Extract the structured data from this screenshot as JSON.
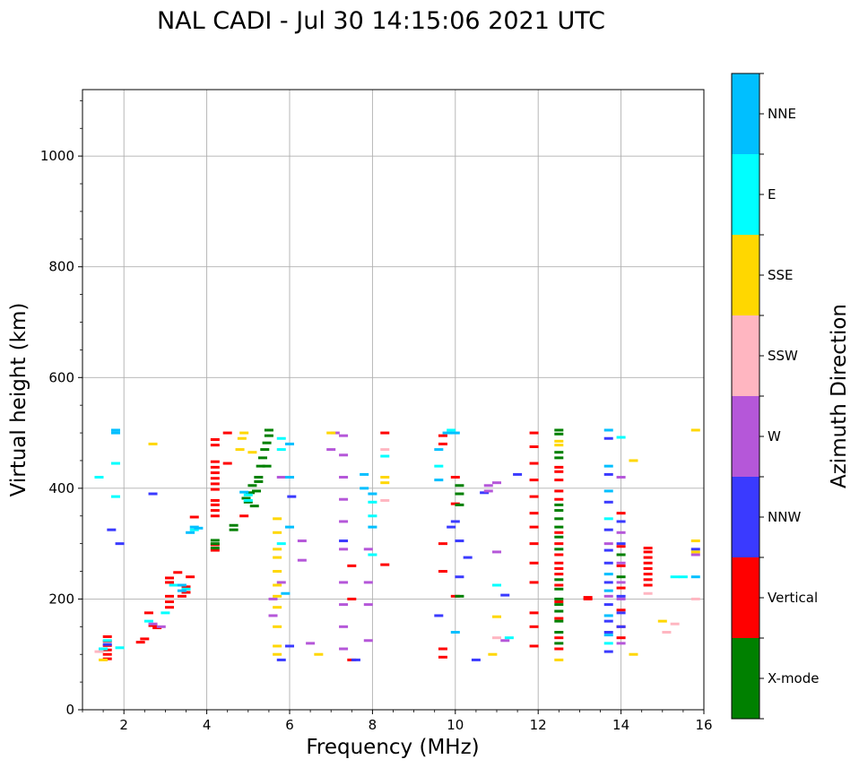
{
  "chart_data": {
    "type": "scatter",
    "title": "NAL CADI - Jul 30 14:15:06 2021 UTC",
    "xlabel": "Frequency (MHz)",
    "ylabel": "Virtual height (km)",
    "xlim": [
      1,
      16
    ],
    "ylim": [
      0,
      1120
    ],
    "xticks": [
      2,
      4,
      6,
      8,
      10,
      12,
      14,
      16
    ],
    "yticks": [
      0,
      200,
      400,
      600,
      800,
      1000
    ],
    "grid": true,
    "colorbar": {
      "label": "Azimuth Direction",
      "categories": [
        "X-mode",
        "Vertical",
        "NNW",
        "W",
        "SSW",
        "SSE",
        "E",
        "NNE"
      ],
      "colors": [
        "#008000",
        "#ff0000",
        "#3a3aff",
        "#b557d9",
        "#ffb6c1",
        "#ffd700",
        "#00ffff",
        "#00bfff"
      ]
    },
    "series": [
      {
        "name": "Vertical",
        "points": [
          [
            1.6,
            92
          ],
          [
            1.6,
            100
          ],
          [
            1.6,
            108
          ],
          [
            1.6,
            116
          ],
          [
            1.6,
            124
          ],
          [
            1.6,
            132
          ],
          [
            2.4,
            122
          ],
          [
            2.5,
            128
          ],
          [
            2.7,
            152
          ],
          [
            2.8,
            148
          ],
          [
            2.6,
            175
          ],
          [
            3.1,
            185
          ],
          [
            3.1,
            195
          ],
          [
            3.1,
            205
          ],
          [
            3.1,
            230
          ],
          [
            3.1,
            238
          ],
          [
            3.3,
            248
          ],
          [
            3.4,
            205
          ],
          [
            3.5,
            212
          ],
          [
            3.5,
            222
          ],
          [
            3.6,
            240
          ],
          [
            3.7,
            348
          ],
          [
            4.2,
            288
          ],
          [
            4.2,
            298
          ],
          [
            4.2,
            350
          ],
          [
            4.2,
            360
          ],
          [
            4.2,
            370
          ],
          [
            4.2,
            378
          ],
          [
            4.2,
            398
          ],
          [
            4.2,
            408
          ],
          [
            4.2,
            418
          ],
          [
            4.2,
            428
          ],
          [
            4.2,
            438
          ],
          [
            4.2,
            448
          ],
          [
            4.2,
            478
          ],
          [
            4.2,
            488
          ],
          [
            4.5,
            500
          ],
          [
            4.5,
            445
          ],
          [
            4.9,
            350
          ],
          [
            7.5,
            260
          ],
          [
            7.5,
            200
          ],
          [
            7.5,
            90
          ],
          [
            8.3,
            500
          ],
          [
            8.3,
            262
          ],
          [
            9.7,
            95
          ],
          [
            9.7,
            110
          ],
          [
            9.7,
            250
          ],
          [
            9.7,
            300
          ],
          [
            9.7,
            480
          ],
          [
            9.7,
            495
          ],
          [
            10.0,
            205
          ],
          [
            10.0,
            372
          ],
          [
            10.0,
            420
          ],
          [
            11.9,
            115
          ],
          [
            11.9,
            150
          ],
          [
            11.9,
            175
          ],
          [
            11.9,
            230
          ],
          [
            11.9,
            265
          ],
          [
            11.9,
            300
          ],
          [
            11.9,
            330
          ],
          [
            11.9,
            355
          ],
          [
            11.9,
            385
          ],
          [
            11.9,
            415
          ],
          [
            11.9,
            445
          ],
          [
            11.9,
            475
          ],
          [
            11.9,
            500
          ],
          [
            12.5,
            110
          ],
          [
            12.5,
            130
          ],
          [
            12.5,
            165
          ],
          [
            12.5,
            195
          ],
          [
            12.5,
            225
          ],
          [
            12.5,
            245
          ],
          [
            12.5,
            255
          ],
          [
            12.5,
            265
          ],
          [
            12.5,
            280
          ],
          [
            12.5,
            300
          ],
          [
            12.5,
            320
          ],
          [
            12.5,
            380
          ],
          [
            12.5,
            395
          ],
          [
            12.5,
            415
          ],
          [
            12.5,
            430
          ],
          [
            12.5,
            438
          ],
          [
            13.2,
            200
          ],
          [
            13.2,
            203
          ],
          [
            14.0,
            130
          ],
          [
            14.0,
            150
          ],
          [
            14.0,
            180
          ],
          [
            14.0,
            220
          ],
          [
            14.0,
            260
          ],
          [
            14.0,
            295
          ],
          [
            14.0,
            355
          ],
          [
            14.65,
            225
          ],
          [
            14.65,
            235
          ],
          [
            14.65,
            245
          ],
          [
            14.65,
            255
          ],
          [
            14.65,
            265
          ],
          [
            14.65,
            275
          ],
          [
            14.65,
            285
          ],
          [
            14.65,
            292
          ]
        ]
      },
      {
        "name": "X-mode",
        "points": [
          [
            4.2,
            292
          ],
          [
            4.2,
            300
          ],
          [
            4.2,
            306
          ],
          [
            4.65,
            325
          ],
          [
            4.65,
            333
          ],
          [
            4.95,
            382
          ],
          [
            5.0,
            375
          ],
          [
            5.05,
            392
          ],
          [
            5.1,
            405
          ],
          [
            5.15,
            368
          ],
          [
            5.2,
            395
          ],
          [
            5.25,
            412
          ],
          [
            5.25,
            420
          ],
          [
            5.3,
            440
          ],
          [
            5.35,
            455
          ],
          [
            5.4,
            470
          ],
          [
            5.45,
            482
          ],
          [
            5.5,
            495
          ],
          [
            5.5,
            505
          ],
          [
            5.45,
            440
          ],
          [
            10.1,
            205
          ],
          [
            10.1,
            370
          ],
          [
            10.1,
            390
          ],
          [
            10.1,
            405
          ],
          [
            12.5,
            120
          ],
          [
            12.5,
            140
          ],
          [
            12.5,
            160
          ],
          [
            12.5,
            178
          ],
          [
            12.5,
            190
          ],
          [
            12.5,
            200
          ],
          [
            12.5,
            218
          ],
          [
            12.5,
            235
          ],
          [
            12.5,
            290
          ],
          [
            12.5,
            312
          ],
          [
            12.5,
            330
          ],
          [
            12.5,
            345
          ],
          [
            12.5,
            360
          ],
          [
            12.5,
            370
          ],
          [
            12.5,
            455
          ],
          [
            12.5,
            465
          ],
          [
            12.5,
            498
          ],
          [
            12.5,
            505
          ],
          [
            14.0,
            240
          ],
          [
            14.0,
            280
          ]
        ]
      },
      {
        "name": "NNW",
        "points": [
          [
            1.5,
            110
          ],
          [
            1.6,
            118
          ],
          [
            1.7,
            325
          ],
          [
            1.9,
            300
          ],
          [
            2.7,
            390
          ],
          [
            5.8,
            90
          ],
          [
            6.0,
            115
          ],
          [
            6.05,
            385
          ],
          [
            7.3,
            305
          ],
          [
            7.6,
            90
          ],
          [
            9.6,
            170
          ],
          [
            9.9,
            330
          ],
          [
            10.0,
            340
          ],
          [
            10.1,
            240
          ],
          [
            10.1,
            305
          ],
          [
            10.3,
            275
          ],
          [
            10.5,
            90
          ],
          [
            10.7,
            392
          ],
          [
            11.2,
            207
          ],
          [
            11.5,
            425
          ],
          [
            13.7,
            105
          ],
          [
            13.7,
            140
          ],
          [
            13.7,
            160
          ],
          [
            13.7,
            190
          ],
          [
            13.7,
            230
          ],
          [
            13.7,
            265
          ],
          [
            13.7,
            288
          ],
          [
            13.7,
            325
          ],
          [
            13.7,
            375
          ],
          [
            13.7,
            425
          ],
          [
            13.7,
            490
          ],
          [
            14.0,
            150
          ],
          [
            14.0,
            175
          ],
          [
            14.0,
            205
          ],
          [
            14.0,
            300
          ],
          [
            14.0,
            340
          ],
          [
            15.8,
            290
          ]
        ]
      },
      {
        "name": "W",
        "points": [
          [
            2.7,
            155
          ],
          [
            2.9,
            150
          ],
          [
            5.6,
            170
          ],
          [
            5.6,
            200
          ],
          [
            5.8,
            230
          ],
          [
            5.8,
            420
          ],
          [
            6.3,
            270
          ],
          [
            6.3,
            305
          ],
          [
            6.5,
            120
          ],
          [
            7.0,
            470
          ],
          [
            7.1,
            500
          ],
          [
            7.3,
            110
          ],
          [
            7.3,
            150
          ],
          [
            7.3,
            190
          ],
          [
            7.3,
            230
          ],
          [
            7.3,
            290
          ],
          [
            7.3,
            340
          ],
          [
            7.3,
            380
          ],
          [
            7.3,
            420
          ],
          [
            7.3,
            460
          ],
          [
            7.3,
            495
          ],
          [
            7.9,
            125
          ],
          [
            7.9,
            190
          ],
          [
            7.9,
            230
          ],
          [
            7.9,
            290
          ],
          [
            10.8,
            395
          ],
          [
            10.8,
            405
          ],
          [
            11.0,
            285
          ],
          [
            11.0,
            410
          ],
          [
            11.2,
            125
          ],
          [
            13.7,
            205
          ],
          [
            13.7,
            300
          ],
          [
            14.0,
            120
          ],
          [
            14.0,
            200
          ],
          [
            14.0,
            230
          ],
          [
            14.0,
            265
          ],
          [
            14.0,
            320
          ],
          [
            14.0,
            420
          ],
          [
            15.8,
            280
          ]
        ]
      },
      {
        "name": "SSW",
        "points": [
          [
            1.4,
            105
          ],
          [
            8.3,
            378
          ],
          [
            8.3,
            470
          ],
          [
            11.0,
            130
          ],
          [
            14.65,
            210
          ],
          [
            15.1,
            140
          ],
          [
            15.3,
            155
          ],
          [
            15.8,
            200
          ]
        ]
      },
      {
        "name": "SSE",
        "points": [
          [
            1.5,
            90
          ],
          [
            2.7,
            480
          ],
          [
            4.8,
            470
          ],
          [
            4.85,
            490
          ],
          [
            4.9,
            500
          ],
          [
            5.1,
            465
          ],
          [
            5.7,
            100
          ],
          [
            5.7,
            115
          ],
          [
            5.7,
            150
          ],
          [
            5.7,
            185
          ],
          [
            5.7,
            205
          ],
          [
            5.7,
            225
          ],
          [
            5.7,
            250
          ],
          [
            5.7,
            275
          ],
          [
            5.7,
            290
          ],
          [
            5.7,
            320
          ],
          [
            5.7,
            345
          ],
          [
            6.7,
            100
          ],
          [
            7.0,
            500
          ],
          [
            8.3,
            410
          ],
          [
            8.3,
            420
          ],
          [
            10.9,
            100
          ],
          [
            11.0,
            168
          ],
          [
            12.5,
            90
          ],
          [
            12.5,
            485
          ],
          [
            12.5,
            478
          ],
          [
            14.3,
            100
          ],
          [
            14.3,
            450
          ],
          [
            15.0,
            160
          ],
          [
            15.8,
            285
          ],
          [
            15.8,
            305
          ],
          [
            15.8,
            505
          ]
        ]
      },
      {
        "name": "E",
        "points": [
          [
            1.4,
            420
          ],
          [
            1.5,
            110
          ],
          [
            1.6,
            125
          ],
          [
            1.8,
            385
          ],
          [
            1.8,
            445
          ],
          [
            1.9,
            112
          ],
          [
            2.6,
            160
          ],
          [
            3.0,
            175
          ],
          [
            3.2,
            225
          ],
          [
            3.5,
            218
          ],
          [
            3.7,
            325
          ],
          [
            5.0,
            388
          ],
          [
            5.0,
            378
          ],
          [
            5.8,
            300
          ],
          [
            5.8,
            470
          ],
          [
            5.8,
            490
          ],
          [
            8.0,
            280
          ],
          [
            8.0,
            350
          ],
          [
            8.0,
            375
          ],
          [
            8.3,
            458
          ],
          [
            9.6,
            440
          ],
          [
            9.9,
            505
          ],
          [
            11.0,
            225
          ],
          [
            11.3,
            130
          ],
          [
            13.7,
            120
          ],
          [
            13.7,
            345
          ],
          [
            14.0,
            492
          ],
          [
            15.3,
            240
          ],
          [
            15.5,
            240
          ]
        ]
      },
      {
        "name": "NNE",
        "points": [
          [
            1.8,
            500
          ],
          [
            1.8,
            505
          ],
          [
            3.4,
            215
          ],
          [
            3.4,
            225
          ],
          [
            3.6,
            320
          ],
          [
            3.7,
            330
          ],
          [
            3.8,
            328
          ],
          [
            4.9,
            393
          ],
          [
            5.9,
            210
          ],
          [
            6.0,
            330
          ],
          [
            6.0,
            480
          ],
          [
            6.0,
            420
          ],
          [
            7.8,
            400
          ],
          [
            7.8,
            425
          ],
          [
            8.0,
            390
          ],
          [
            8.0,
            330
          ],
          [
            9.6,
            415
          ],
          [
            9.6,
            470
          ],
          [
            9.8,
            500
          ],
          [
            10.0,
            140
          ],
          [
            10.0,
            500
          ],
          [
            13.7,
            135
          ],
          [
            13.7,
            170
          ],
          [
            13.7,
            215
          ],
          [
            13.7,
            245
          ],
          [
            13.7,
            395
          ],
          [
            13.7,
            440
          ],
          [
            13.7,
            505
          ],
          [
            15.8,
            240
          ]
        ]
      }
    ]
  }
}
